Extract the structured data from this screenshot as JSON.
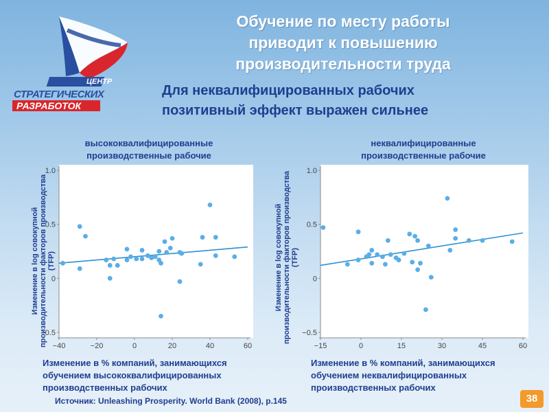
{
  "header": {
    "title_lines": [
      "Обучение по месту работы",
      "приводит к повышению",
      "производительности труда"
    ],
    "subtitle_lines": [
      "Для неквалифицированных рабочих",
      "позитивный  эффект выражен сильнее"
    ]
  },
  "logo": {
    "word_top": "ЦЕНТР",
    "word_mid": "СТРАТЕГИЧЕСКИХ",
    "word_bottom": "РАЗРАБОТОК",
    "colors": {
      "blue": "#2a4fa0",
      "red": "#d8262c",
      "white": "#ffffff"
    }
  },
  "footer": {
    "source": "Источник: Unleashing Prosperity. World Bank (2008), p.145",
    "page_number": "38"
  },
  "colors": {
    "accent_text": "#1f3e8f",
    "points": "#5aaee6",
    "trend": "#2f8fd0",
    "page_badge": "#f39a2a"
  },
  "chart_data": [
    {
      "type": "scatter",
      "title_lines": [
        "высококвалифицированные",
        "производственные рабочие"
      ],
      "ylabel_lines": [
        "Изменение в log совокупной",
        "производительности факторов производства",
        "(TFP)"
      ],
      "xlabel_lines": [
        "Изменение в % компаний, занимающихся",
        "обучением высококвалифицированных",
        "производственных рабочих"
      ],
      "xlim": [
        -40,
        60
      ],
      "ylim": [
        -0.5,
        1.0
      ],
      "xticks": [
        -40,
        -20,
        0,
        20,
        40,
        60
      ],
      "xtick_labels": [
        "−40",
        "−20",
        "0",
        "20",
        "40",
        "60"
      ],
      "yticks": [
        1.0,
        0.5,
        0,
        -0.5
      ],
      "ytick_labels": [
        "1.0",
        "0.5",
        "0",
        "−0.5"
      ],
      "trend": {
        "x": [
          -40,
          60
        ],
        "y": [
          0.14,
          0.29
        ]
      },
      "points": [
        {
          "x": -38,
          "y": 0.14
        },
        {
          "x": -29,
          "y": 0.48
        },
        {
          "x": -29,
          "y": 0.09
        },
        {
          "x": -26,
          "y": 0.39
        },
        {
          "x": -15,
          "y": 0.17
        },
        {
          "x": -13,
          "y": 0.0
        },
        {
          "x": -13,
          "y": 0.12
        },
        {
          "x": -11,
          "y": 0.18
        },
        {
          "x": -9,
          "y": 0.12
        },
        {
          "x": -4,
          "y": 0.17
        },
        {
          "x": -4,
          "y": 0.27
        },
        {
          "x": -2,
          "y": 0.2
        },
        {
          "x": 1,
          "y": 0.18
        },
        {
          "x": 4,
          "y": 0.26
        },
        {
          "x": 4,
          "y": 0.18
        },
        {
          "x": 7,
          "y": 0.21
        },
        {
          "x": 9,
          "y": 0.19
        },
        {
          "x": 11,
          "y": 0.2
        },
        {
          "x": 13,
          "y": 0.17
        },
        {
          "x": 13,
          "y": 0.25
        },
        {
          "x": 14,
          "y": 0.14
        },
        {
          "x": 14,
          "y": -0.35
        },
        {
          "x": 16,
          "y": 0.34
        },
        {
          "x": 17,
          "y": 0.24
        },
        {
          "x": 19,
          "y": 0.28
        },
        {
          "x": 20,
          "y": 0.37
        },
        {
          "x": 24,
          "y": 0.24
        },
        {
          "x": 24,
          "y": -0.03
        },
        {
          "x": 25,
          "y": 0.23
        },
        {
          "x": 35,
          "y": 0.13
        },
        {
          "x": 36,
          "y": 0.38
        },
        {
          "x": 40,
          "y": 0.68
        },
        {
          "x": 43,
          "y": 0.38
        },
        {
          "x": 43,
          "y": 0.21
        },
        {
          "x": 53,
          "y": 0.2
        }
      ]
    },
    {
      "type": "scatter",
      "title_lines": [
        "неквалифицированные",
        "производственные рабочие"
      ],
      "ylabel_lines": [
        "Изменение в log совокупной",
        "производительности факторов производства",
        "(TFP)"
      ],
      "xlabel_lines": [
        "Изменение в % компаний, занимающихся",
        "обучением неквалифицированных",
        "производственных рабочих"
      ],
      "xlim": [
        -15,
        60
      ],
      "ylim": [
        -0.5,
        1.0
      ],
      "xticks": [
        -15,
        0,
        15,
        30,
        45,
        60
      ],
      "xtick_labels": [
        "−15",
        "0",
        "15",
        "30",
        "45",
        "60"
      ],
      "yticks": [
        1.0,
        0.5,
        0,
        -0.5
      ],
      "ytick_labels": [
        "1.0",
        "0.5",
        "0",
        "−0.5"
      ],
      "trend": {
        "x": [
          -15,
          60
        ],
        "y": [
          0.12,
          0.42
        ]
      },
      "points": [
        {
          "x": -14,
          "y": 0.47
        },
        {
          "x": -5,
          "y": 0.13
        },
        {
          "x": -1,
          "y": 0.43
        },
        {
          "x": -1,
          "y": 0.17
        },
        {
          "x": 2,
          "y": 0.2
        },
        {
          "x": 3,
          "y": 0.22
        },
        {
          "x": 4,
          "y": 0.14
        },
        {
          "x": 4,
          "y": 0.26
        },
        {
          "x": 6,
          "y": 0.22
        },
        {
          "x": 8,
          "y": 0.2
        },
        {
          "x": 9,
          "y": 0.13
        },
        {
          "x": 10,
          "y": 0.35
        },
        {
          "x": 11,
          "y": 0.22
        },
        {
          "x": 13,
          "y": 0.19
        },
        {
          "x": 14,
          "y": 0.17
        },
        {
          "x": 16,
          "y": 0.23
        },
        {
          "x": 18,
          "y": 0.41
        },
        {
          "x": 19,
          "y": 0.15
        },
        {
          "x": 20,
          "y": 0.39
        },
        {
          "x": 21,
          "y": 0.35
        },
        {
          "x": 21,
          "y": 0.08
        },
        {
          "x": 22,
          "y": 0.14
        },
        {
          "x": 24,
          "y": -0.29
        },
        {
          "x": 25,
          "y": 0.3
        },
        {
          "x": 26,
          "y": 0.01
        },
        {
          "x": 32,
          "y": 0.74
        },
        {
          "x": 33,
          "y": 0.26
        },
        {
          "x": 35,
          "y": 0.45
        },
        {
          "x": 35,
          "y": 0.37
        },
        {
          "x": 40,
          "y": 0.35
        },
        {
          "x": 45,
          "y": 0.35
        },
        {
          "x": 56,
          "y": 0.34
        }
      ]
    }
  ]
}
